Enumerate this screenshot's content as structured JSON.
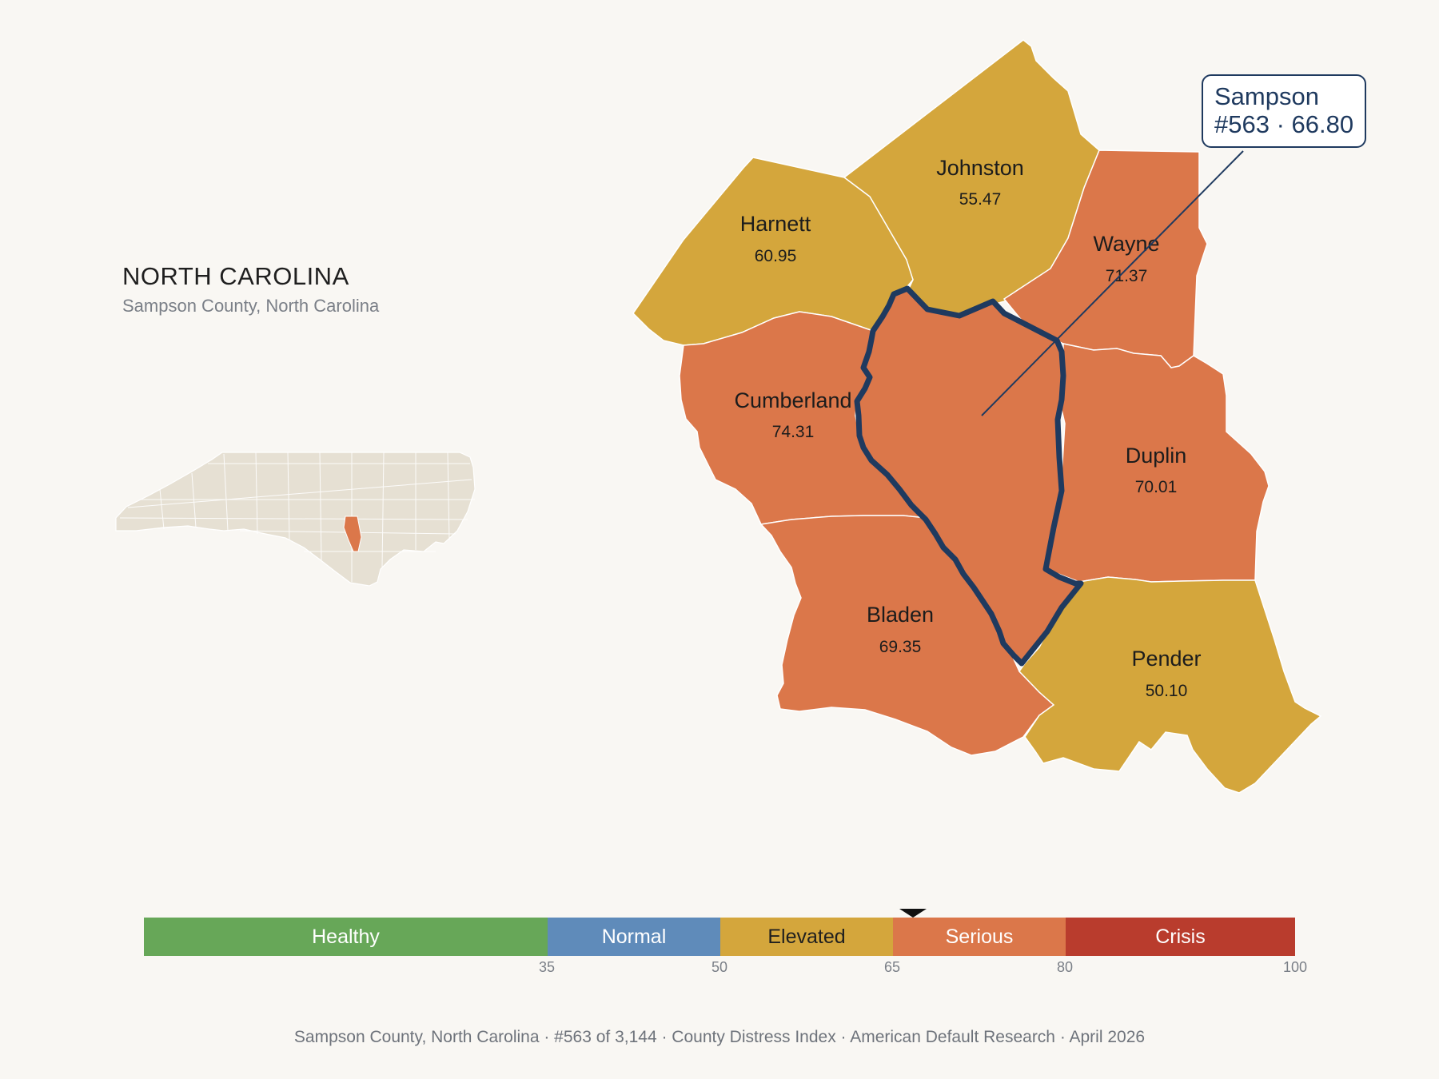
{
  "header": {
    "state": "NORTH CAROLINA",
    "subtitle": "Sampson County, North Carolina"
  },
  "callout": {
    "name": "Sampson",
    "rank_value": "#563 · 66.80"
  },
  "counties": {
    "johnston": {
      "name": "Johnston",
      "value": "55.47",
      "color": "#d4a63c"
    },
    "harnett": {
      "name": "Harnett",
      "value": "60.95",
      "color": "#d4a63c"
    },
    "wayne": {
      "name": "Wayne",
      "value": "71.37",
      "color": "#db774a"
    },
    "cumberland": {
      "name": "Cumberland",
      "value": "74.31",
      "color": "#db774a"
    },
    "duplin": {
      "name": "Duplin",
      "value": "70.01",
      "color": "#db774a"
    },
    "bladen": {
      "name": "Bladen",
      "value": "69.35",
      "color": "#db774a"
    },
    "pender": {
      "name": "Pender",
      "value": "50.10",
      "color": "#d4a63c"
    },
    "sampson": {
      "name": "Sampson",
      "value": "66.80",
      "color": "#db774a",
      "highlighted": true
    }
  },
  "legend": {
    "segments": [
      {
        "label": "Healthy",
        "color": "#67a758",
        "text_color": "#ffffff"
      },
      {
        "label": "Normal",
        "color": "#5f8bba",
        "text_color": "#ffffff"
      },
      {
        "label": "Elevated",
        "color": "#d4a63c",
        "text_color": "#1f1f1f"
      },
      {
        "label": "Serious",
        "color": "#db774a",
        "text_color": "#ffffff"
      },
      {
        "label": "Crisis",
        "color": "#b93c2d",
        "text_color": "#ffffff"
      }
    ],
    "ticks": [
      "35",
      "50",
      "65",
      "80",
      "100"
    ],
    "marker_value": 66.8
  },
  "footer": {
    "text": "Sampson County, North Carolina · #563 of 3,144 · County Distress Index · American Default Research · April 2026"
  },
  "colors": {
    "outline": "#1f3a5f",
    "inset_land": "#e6e0d3",
    "background": "#f9f7f3"
  }
}
